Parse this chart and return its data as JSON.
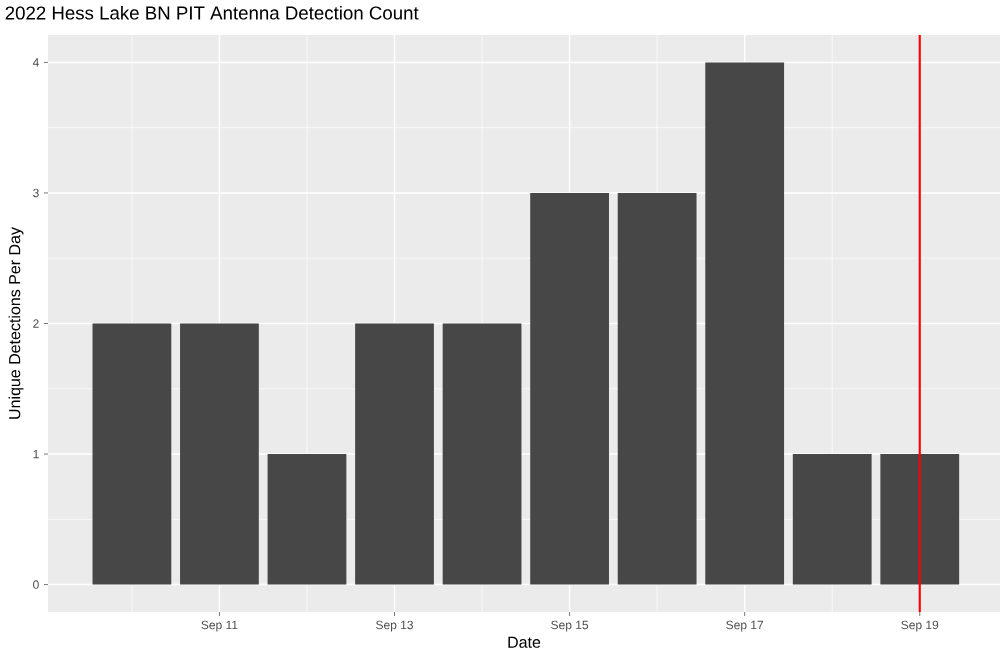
{
  "chart_data": {
    "type": "bar",
    "title": "2022 Hess Lake BN PIT Antenna Detection Count",
    "xlabel": "Date",
    "ylabel": "Unique Detections Per Day",
    "x": [
      "2022-09-10",
      "2022-09-11",
      "2022-09-12",
      "2022-09-13",
      "2022-09-14",
      "2022-09-15",
      "2022-09-16",
      "2022-09-17",
      "2022-09-18",
      "2022-09-19"
    ],
    "values": [
      2,
      2,
      1,
      2,
      2,
      3,
      3,
      4,
      1,
      1
    ],
    "color": "#474747",
    "xlim": [
      "2022-09-09T01:00",
      "2022-09-19T22:00"
    ],
    "xticks": [
      {
        "value": "2022-09-11",
        "label": "Sep 11"
      },
      {
        "value": "2022-09-13",
        "label": "Sep 13"
      },
      {
        "value": "2022-09-15",
        "label": "Sep 15"
      },
      {
        "value": "2022-09-17",
        "label": "Sep 17"
      },
      {
        "value": "2022-09-19",
        "label": "Sep 19"
      }
    ],
    "ylim": [
      -0.21,
      4.21
    ],
    "yticks": [
      0,
      1,
      2,
      3,
      4
    ],
    "grid": true,
    "ref_lines": [
      {
        "axis": "x",
        "value": "2022-09-19",
        "color": "#ff0000"
      }
    ]
  }
}
